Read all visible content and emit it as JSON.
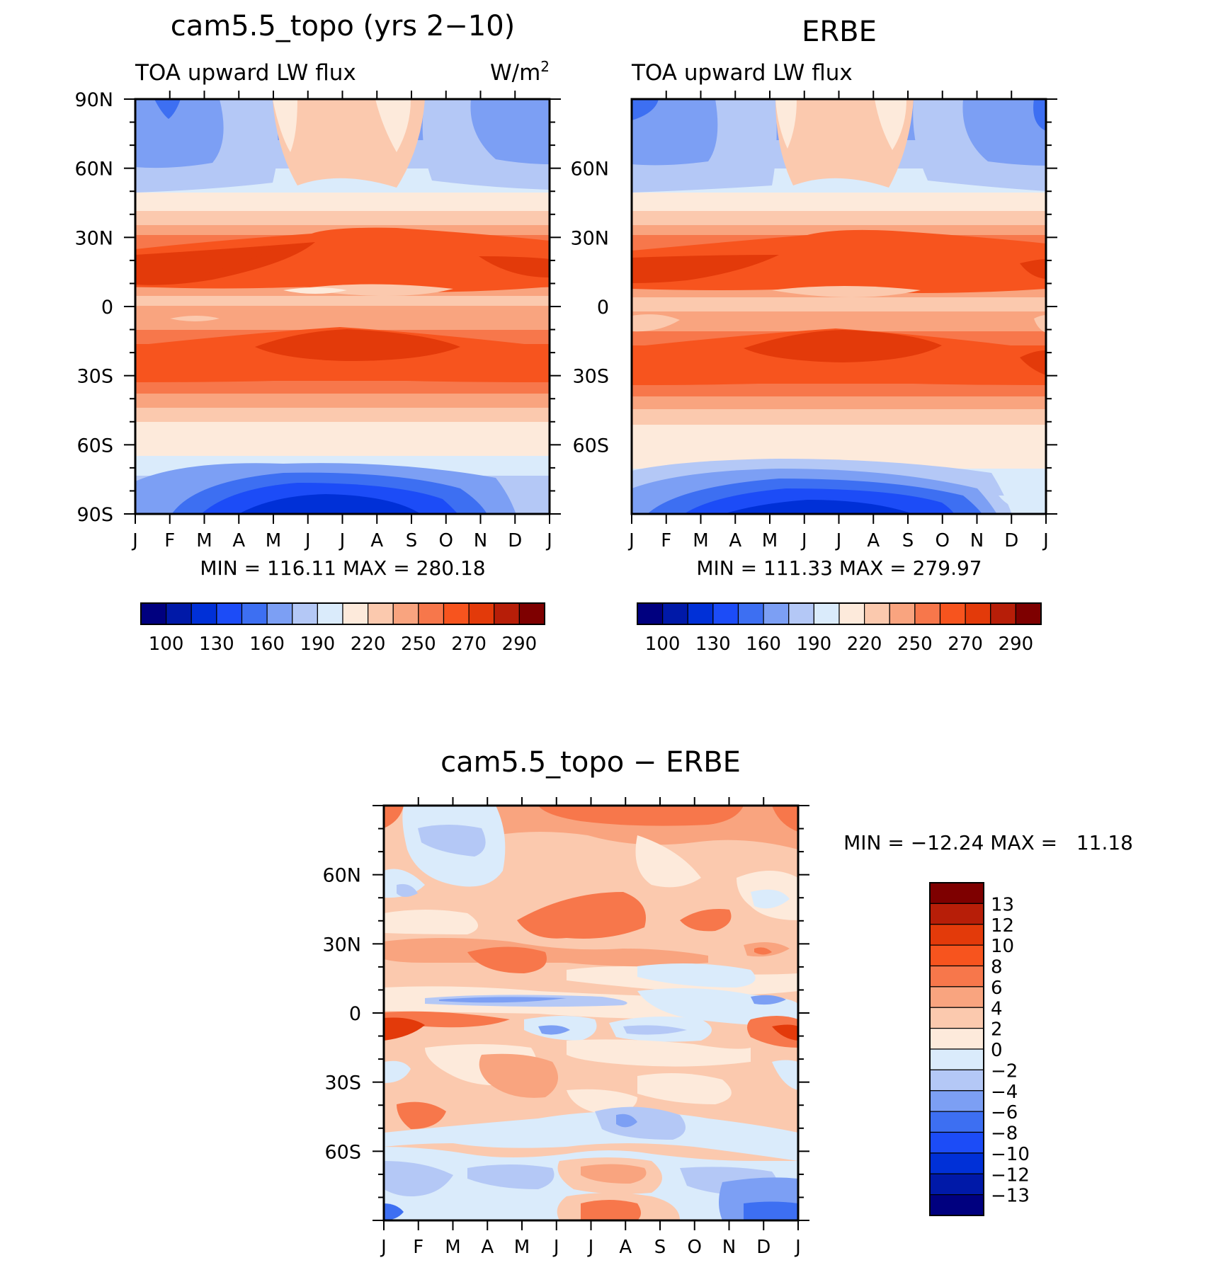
{
  "chart_data": [
    {
      "type": "heatmap",
      "title": "cam5.5_topo (yrs 2−10)",
      "left_label": "TOA upward LW flux",
      "units": "W/m",
      "units_sup": "2",
      "x_ticks": [
        "J",
        "F",
        "M",
        "A",
        "M",
        "J",
        "J",
        "A",
        "S",
        "O",
        "N",
        "D",
        "J"
      ],
      "y_ticks": [
        "90N",
        "60N",
        "30N",
        "0",
        "30S",
        "60S",
        "90S"
      ],
      "stats": "MIN = 116.11 MAX = 280.18",
      "colorbar_labels": [
        "100",
        "130",
        "160",
        "190",
        "220",
        "250",
        "270",
        "290"
      ],
      "colors": [
        "#00007f",
        "#0019a8",
        "#0030d7",
        "#1c4cf7",
        "#3d6ff2",
        "#7c9ff4",
        "#b4c8f6",
        "#daebfb",
        "#fdeadb",
        "#fbc9ae",
        "#f9a47f",
        "#f7774b",
        "#f7541e",
        "#e33a0a",
        "#b71e08",
        "#7e0000"
      ],
      "ylim": [
        -90,
        90
      ]
    },
    {
      "type": "heatmap",
      "title": "ERBE",
      "left_label": "TOA upward LW flux",
      "x_ticks": [
        "J",
        "F",
        "M",
        "A",
        "M",
        "J",
        "J",
        "A",
        "S",
        "O",
        "N",
        "D",
        "J"
      ],
      "y_ticks": [
        "60N",
        "30N",
        "0",
        "30S",
        "60S"
      ],
      "stats": "MIN = 111.33 MAX = 279.97",
      "colorbar_labels": [
        "100",
        "130",
        "160",
        "190",
        "220",
        "250",
        "270",
        "290"
      ],
      "ylim": [
        -90,
        90
      ]
    },
    {
      "type": "heatmap",
      "title": "cam5.5_topo − ERBE",
      "x_ticks": [
        "J",
        "F",
        "M",
        "A",
        "M",
        "J",
        "J",
        "A",
        "S",
        "O",
        "N",
        "D",
        "J"
      ],
      "y_ticks": [
        "60N",
        "30N",
        "0",
        "30S",
        "60S"
      ],
      "stats": "MIN = −12.24 MAX =   11.18",
      "colorbar_labels": [
        "13",
        "12",
        "10",
        "8",
        "6",
        "4",
        "2",
        "0",
        "−2",
        "−4",
        "−6",
        "−8",
        "−10",
        "−12",
        "−13"
      ],
      "colors": [
        "#7e0000",
        "#b71e08",
        "#e33a0a",
        "#f7541e",
        "#f7774b",
        "#f9a47f",
        "#fbc9ae",
        "#fdeadb",
        "#daebfb",
        "#b4c8f6",
        "#7c9ff4",
        "#3d6ff2",
        "#1c4cf7",
        "#0030d7",
        "#0019a8",
        "#00007f"
      ],
      "ylim": [
        -90,
        90
      ]
    }
  ]
}
